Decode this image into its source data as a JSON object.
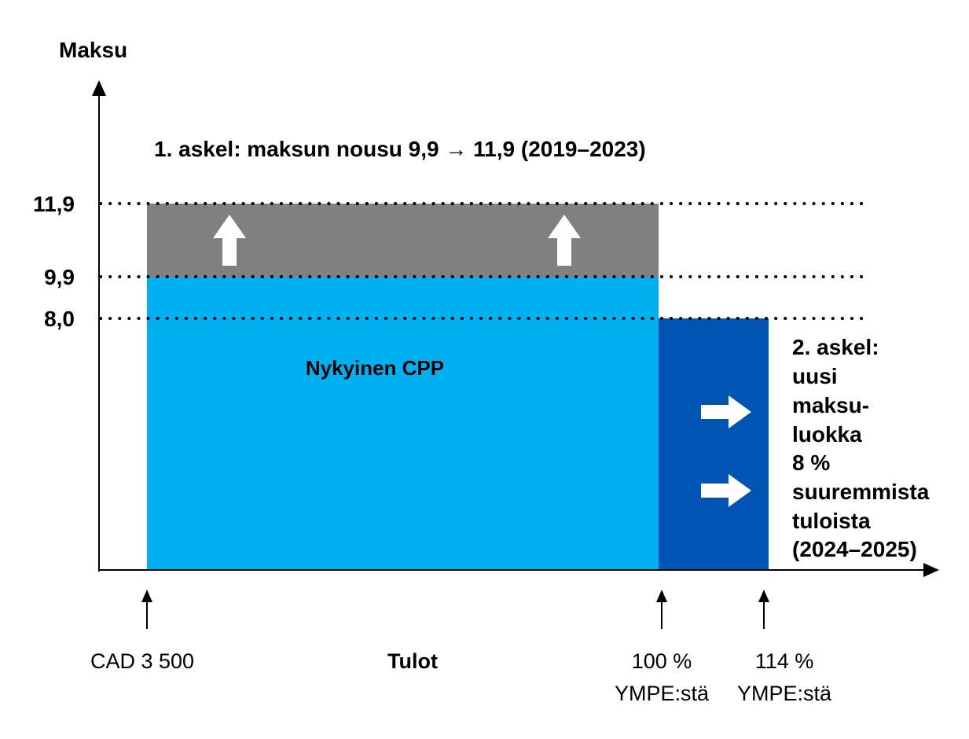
{
  "diagram": {
    "y_axis_label": "Maksu",
    "x_axis_label": "Tulot",
    "step1_text": "1. askel: maksun nousu 9,9 → 11,9 (2019–2023)",
    "current_cpp_label": "Nykyinen CPP",
    "y_levels": [
      "11,9",
      "9,9",
      "8,0"
    ],
    "step2_lines": [
      "2. askel:",
      "uusi",
      "maksu-",
      "luokka",
      "8 %",
      "suuremmista",
      "tuloista",
      "(2024–2025)"
    ],
    "x_markers": {
      "start": "CAD 3 500",
      "ympe100_line1": "100 %",
      "ympe100_line2": "YMPE:stä",
      "ympe114_line1": "114 %",
      "ympe114_line2": "YMPE:stä"
    },
    "colors": {
      "current_cpp": "#00b0f0",
      "step1_increase": "#808080",
      "step2_tier": "#0054b4",
      "axis": "#000000",
      "arrow_fill": "#ffffff"
    }
  }
}
